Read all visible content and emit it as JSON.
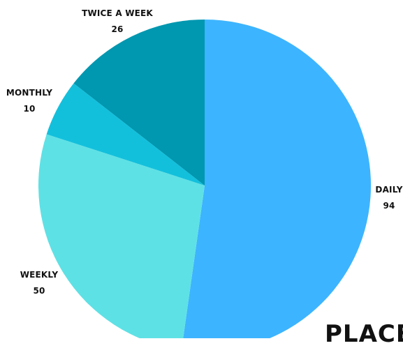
{
  "chart_data": {
    "type": "pie",
    "slices": [
      {
        "label": "DAILY",
        "value": 94,
        "color": "#3db4ff"
      },
      {
        "label": "WEEKLY",
        "value": 50,
        "color": "#5ee1e5"
      },
      {
        "label": "MONTHLY",
        "value": 10,
        "color": "#12c0dc"
      },
      {
        "label": "TWICE A WEEK",
        "value": 26,
        "color": "#0097b0"
      }
    ],
    "start_angle_deg": 0,
    "direction": "clockwise",
    "legend": "none"
  },
  "footer_partial_text": "PLACE"
}
